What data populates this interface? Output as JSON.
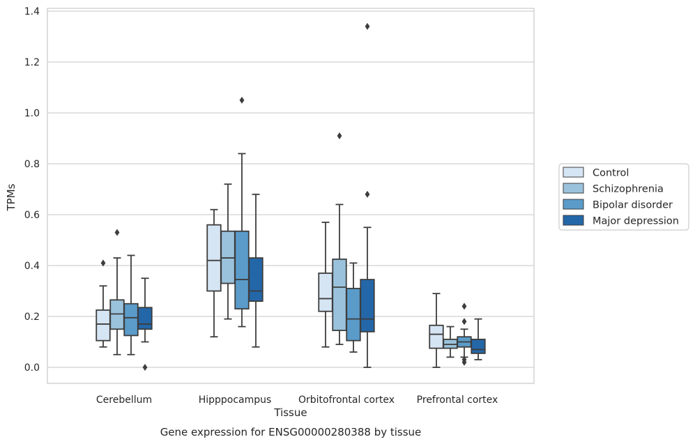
{
  "chart_data": {
    "type": "box",
    "caption": "Gene expression for ENSG00000280388 by tissue",
    "xlabel": "Tissue",
    "ylabel": "TPMs",
    "ylim": [
      -0.06,
      1.41
    ],
    "yticks": [
      0.0,
      0.2,
      0.4,
      0.6,
      0.8,
      1.0,
      1.2,
      1.4
    ],
    "ytick_labels": [
      "0.0",
      "0.2",
      "0.4",
      "0.6",
      "0.8",
      "1.0",
      "1.2",
      "1.4"
    ],
    "grid": "horizontal",
    "legend_position": "right",
    "categories": [
      "Cerebellum",
      "Hipppocampus",
      "Orbitofrontal cortex",
      "Prefrontal cortex"
    ],
    "series": [
      {
        "name": "Control",
        "color": "#d6e5f4",
        "boxes": [
          {
            "whislo": 0.08,
            "q1": 0.105,
            "med": 0.17,
            "q3": 0.225,
            "whishi": 0.32,
            "fliers": [
              0.41
            ]
          },
          {
            "whislo": 0.12,
            "q1": 0.3,
            "med": 0.42,
            "q3": 0.56,
            "whishi": 0.62,
            "fliers": []
          },
          {
            "whislo": 0.08,
            "q1": 0.22,
            "med": 0.27,
            "q3": 0.37,
            "whishi": 0.57,
            "fliers": []
          },
          {
            "whislo": 0.0,
            "q1": 0.075,
            "med": 0.13,
            "q3": 0.165,
            "whishi": 0.29,
            "fliers": []
          }
        ]
      },
      {
        "name": "Schizophrenia",
        "color": "#9ac2dc",
        "boxes": [
          {
            "whislo": 0.05,
            "q1": 0.15,
            "med": 0.21,
            "q3": 0.265,
            "whishi": 0.43,
            "fliers": [
              0.53
            ]
          },
          {
            "whislo": 0.19,
            "q1": 0.33,
            "med": 0.43,
            "q3": 0.535,
            "whishi": 0.72,
            "fliers": []
          },
          {
            "whislo": 0.09,
            "q1": 0.145,
            "med": 0.315,
            "q3": 0.425,
            "whishi": 0.64,
            "fliers": [
              0.91
            ]
          },
          {
            "whislo": 0.04,
            "q1": 0.075,
            "med": 0.09,
            "q3": 0.11,
            "whishi": 0.16,
            "fliers": []
          }
        ]
      },
      {
        "name": "Bipolar disorder",
        "color": "#5a9bc9",
        "boxes": [
          {
            "whislo": 0.05,
            "q1": 0.125,
            "med": 0.195,
            "q3": 0.25,
            "whishi": 0.44,
            "fliers": []
          },
          {
            "whislo": 0.16,
            "q1": 0.23,
            "med": 0.345,
            "q3": 0.535,
            "whishi": 0.84,
            "fliers": [
              1.05
            ]
          },
          {
            "whislo": 0.06,
            "q1": 0.105,
            "med": 0.19,
            "q3": 0.31,
            "whishi": 0.41,
            "fliers": []
          },
          {
            "whislo": 0.04,
            "q1": 0.08,
            "med": 0.1,
            "q3": 0.12,
            "whishi": 0.15,
            "fliers": [
              0.24,
              0.18,
              0.03,
              0.02
            ]
          }
        ]
      },
      {
        "name": "Major depression",
        "color": "#2467a8",
        "boxes": [
          {
            "whislo": 0.1,
            "q1": 0.15,
            "med": 0.17,
            "q3": 0.235,
            "whishi": 0.35,
            "fliers": [
              0.0
            ]
          },
          {
            "whislo": 0.08,
            "q1": 0.26,
            "med": 0.3,
            "q3": 0.43,
            "whishi": 0.68,
            "fliers": []
          },
          {
            "whislo": 0.0,
            "q1": 0.14,
            "med": 0.19,
            "q3": 0.345,
            "whishi": 0.55,
            "fliers": [
              1.34,
              0.68
            ]
          },
          {
            "whislo": 0.03,
            "q1": 0.055,
            "med": 0.07,
            "q3": 0.11,
            "whishi": 0.19,
            "fliers": []
          }
        ]
      }
    ]
  }
}
